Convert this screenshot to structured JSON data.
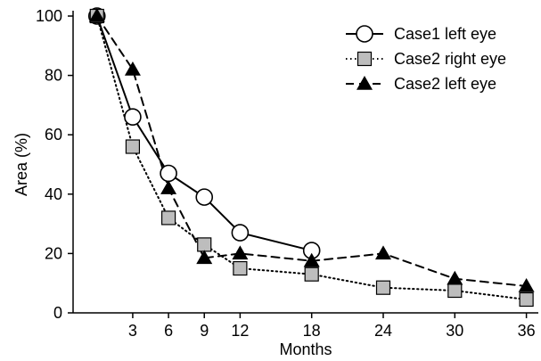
{
  "chart_data": {
    "type": "line",
    "xlabel": "Months",
    "ylabel": "Area (%)",
    "ylim": [
      0,
      100
    ],
    "xlim": [
      -2,
      37
    ],
    "y_ticks": [
      0,
      20,
      40,
      60,
      80,
      100
    ],
    "x_ticks": [
      3,
      6,
      9,
      12,
      18,
      24,
      30,
      36
    ],
    "grid": false,
    "legend_position": "top-right",
    "series": [
      {
        "name": "Case1 left eye",
        "marker": "circle-open",
        "line_style": "solid",
        "x": [
          0,
          3,
          6,
          9,
          12,
          18
        ],
        "values": [
          100,
          66,
          47,
          39,
          27,
          21
        ]
      },
      {
        "name": "Case2 right eye",
        "marker": "square-gray",
        "line_style": "dotted",
        "x": [
          0,
          3,
          6,
          9,
          12,
          18,
          24,
          30,
          36
        ],
        "values": [
          100,
          56,
          32,
          23,
          15,
          13,
          8.5,
          7.5,
          4.5
        ]
      },
      {
        "name": "Case2 left eye",
        "marker": "triangle-filled",
        "line_style": "dashed",
        "x": [
          0,
          3,
          6,
          9,
          12,
          18,
          24,
          30,
          36
        ],
        "values": [
          100,
          82,
          42,
          18.5,
          20,
          17.5,
          20,
          11.5,
          9
        ]
      }
    ],
    "colors": {
      "line": "#000000",
      "square_fill": "#bdbdbd",
      "circle_fill": "#ffffff",
      "triangle_fill": "#000000"
    }
  }
}
